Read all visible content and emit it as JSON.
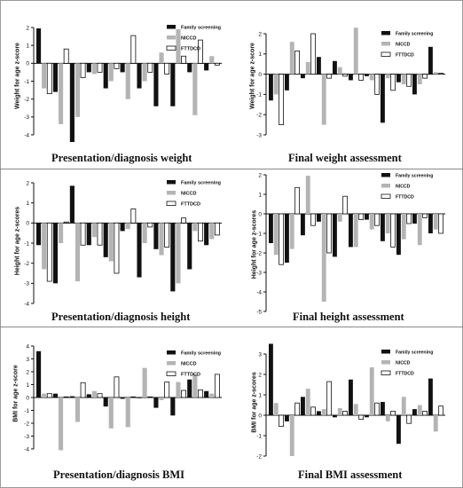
{
  "colors": {
    "family": "#111111",
    "niccd": "#b4b4b4",
    "fttdcd": "#ffffff",
    "axis": "#111111"
  },
  "legend": [
    "Family screening",
    "NICCD",
    "FTTDCD"
  ],
  "chart_data": [
    {
      "type": "bar",
      "title": "Presentation/diagnosis weight",
      "ylabel": "Weight for age z-score",
      "ylim": [
        -4,
        2
      ],
      "yticks": [
        -4,
        -3,
        -2,
        -1,
        0,
        1,
        2
      ],
      "series": [
        {
          "name": "Family screening",
          "values": [
            1.95,
            -1.6,
            -4.4,
            -0.5,
            -1.4,
            -0.5,
            -1.4,
            -2.4,
            -2.4,
            -0.5,
            -0.4
          ]
        },
        {
          "name": "NICCD",
          "values": [
            -1.4,
            -3.4,
            -3.0,
            -0.6,
            -1.0,
            -2.0,
            -1.0,
            0.6,
            1.9,
            -2.9,
            0.4
          ]
        },
        {
          "name": "FTTDCD",
          "values": [
            -1.7,
            0.8,
            -0.8,
            -0.5,
            -0.3,
            1.55,
            -0.5,
            -0.6,
            0.4,
            1.3,
            -0.1
          ]
        }
      ]
    },
    {
      "type": "bar",
      "title": "Final weight assessment",
      "ylabel": "Weight for age z-score",
      "ylim": [
        -3,
        2
      ],
      "yticks": [
        -3,
        -2,
        -1,
        0,
        1,
        2
      ],
      "series": [
        {
          "name": "Family screening",
          "values": [
            -1.3,
            -0.8,
            -0.2,
            0.85,
            0.65,
            -0.3,
            -0.1,
            -2.4,
            -0.4,
            -1.0,
            1.35
          ]
        },
        {
          "name": "NICCD",
          "values": [
            -1.0,
            1.6,
            0.6,
            -2.5,
            0.35,
            2.3,
            -0.3,
            -0.2,
            -0.5,
            -0.5,
            0.1
          ]
        },
        {
          "name": "FTTDCD",
          "values": [
            -2.5,
            1.15,
            2.0,
            -0.2,
            -0.1,
            -0.3,
            -1.0,
            -0.8,
            -0.6,
            -0.2,
            0.05
          ]
        }
      ]
    },
    {
      "type": "bar",
      "title": "Presentation/diagnosis height",
      "ylabel": "Height for age z-scores",
      "ylim": [
        -4,
        2
      ],
      "yticks": [
        -4,
        -3,
        -2,
        -1,
        0,
        1,
        2
      ],
      "series": [
        {
          "name": "Family screening",
          "values": [
            -1.1,
            -3.0,
            1.85,
            -1.1,
            -1.7,
            -0.4,
            -2.7,
            -1.3,
            -3.4,
            -2.3,
            -1.1
          ]
        },
        {
          "name": "NICCD",
          "values": [
            -2.3,
            -1.0,
            -2.9,
            -0.7,
            -1.9,
            -0.3,
            -1.0,
            -1.6,
            -3.0,
            -0.4,
            -0.8
          ]
        },
        {
          "name": "FTTDCD",
          "values": [
            -2.9,
            0.05,
            -1.1,
            -1.1,
            -2.5,
            0.7,
            -0.2,
            -1.2,
            0.25,
            -0.9,
            -0.6
          ]
        }
      ]
    },
    {
      "type": "bar",
      "title": "Final height assessment",
      "ylabel": "Height for age z-scores",
      "ylim": [
        -5,
        2
      ],
      "yticks": [
        -5,
        -4,
        -3,
        -2,
        -1,
        0,
        1,
        2
      ],
      "series": [
        {
          "name": "Family screening",
          "values": [
            -1.5,
            -2.5,
            -1.1,
            -0.4,
            -2.2,
            -1.7,
            -0.3,
            -1.4,
            -2.1,
            -0.5,
            -1.0
          ]
        },
        {
          "name": "NICCD",
          "values": [
            -2.1,
            -1.8,
            1.95,
            -4.5,
            -0.4,
            -1.7,
            -0.8,
            -1.0,
            -1.3,
            -1.6,
            -0.8
          ]
        },
        {
          "name": "FTTDCD",
          "values": [
            -2.6,
            1.35,
            -0.6,
            -2.0,
            0.9,
            -0.3,
            -0.6,
            -1.7,
            -0.5,
            -0.2,
            -1.0
          ]
        }
      ]
    },
    {
      "type": "bar",
      "title": "Presentation/diagnosis BMI",
      "ylabel": "BMI for age z-score",
      "ylim": [
        -4,
        4
      ],
      "yticks": [
        -4,
        -3,
        -2,
        -1,
        0,
        1,
        2,
        3,
        4
      ],
      "series": [
        {
          "name": "Family screening",
          "values": [
            3.6,
            0.3,
            0.1,
            0.25,
            -0.7,
            -0.1,
            0.0,
            -0.8,
            -1.4,
            1.4,
            0.5
          ]
        },
        {
          "name": "NICCD",
          "values": [
            0.3,
            -4.1,
            -1.9,
            0.5,
            -2.4,
            -2.3,
            2.3,
            -0.2,
            1.2,
            1.8,
            0.3
          ]
        },
        {
          "name": "FTTDCD",
          "values": [
            0.3,
            0.05,
            1.15,
            0.3,
            1.6,
            0.05,
            0.05,
            1.2,
            0.55,
            0.6,
            1.8
          ]
        }
      ]
    },
    {
      "type": "bar",
      "title": "Final BMI assessment",
      "ylabel": "BMI for age z-scores",
      "ylim": [
        -2,
        3
      ],
      "yticks": [
        -2,
        -1,
        0,
        1,
        2,
        3
      ],
      "series": [
        {
          "name": "Family screening",
          "values": [
            3.5,
            -0.3,
            0.9,
            0.2,
            -0.1,
            1.75,
            -0.1,
            0.65,
            -1.4,
            0.3,
            1.8
          ]
        },
        {
          "name": "NICCD",
          "values": [
            0.6,
            -2.0,
            1.3,
            0.3,
            0.35,
            0.55,
            2.35,
            -0.3,
            0.9,
            0.5,
            -0.8
          ]
        },
        {
          "name": "FTTDCD",
          "values": [
            -0.55,
            0.6,
            0.4,
            1.65,
            0.2,
            -0.2,
            0.6,
            0.2,
            -0.4,
            0.2,
            0.45
          ]
        }
      ]
    }
  ]
}
